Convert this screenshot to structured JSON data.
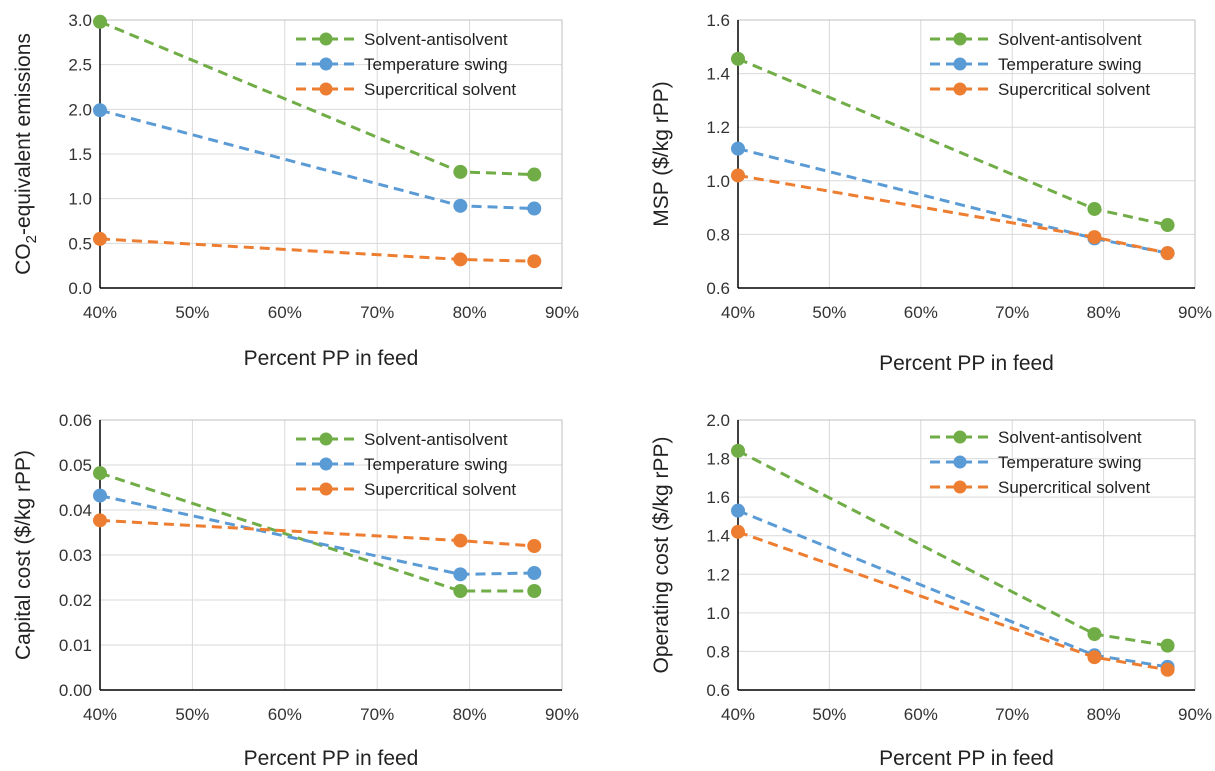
{
  "chart_data": [
    {
      "type": "line",
      "xlabel": "Percent PP in feed",
      "ylabel": "CO2-equivalent emissions",
      "ylabel_parts": {
        "pre": "CO",
        "sub": "2",
        "post": "-equivalent emissions"
      },
      "xlim": [
        0.4,
        0.9
      ],
      "ylim": [
        0,
        3
      ],
      "x_ticks": [
        "40%",
        "50%",
        "60%",
        "70%",
        "80%",
        "90%"
      ],
      "y_ticks": [
        "0.0",
        "0.5",
        "1.0",
        "1.5",
        "2.0",
        "2.5",
        "3.0"
      ],
      "grid": true,
      "legend_position": "top-right",
      "x": [
        0.4,
        0.79,
        0.87
      ],
      "series": [
        {
          "name": "Solvent-antisolvent",
          "color": "#70ad47",
          "values": [
            2.98,
            1.3,
            1.27
          ]
        },
        {
          "name": "Temperature swing",
          "color": "#5b9bd5",
          "values": [
            1.99,
            0.92,
            0.89
          ]
        },
        {
          "name": "Supercritical solvent",
          "color": "#ed7d31",
          "values": [
            0.55,
            0.32,
            0.3
          ]
        }
      ]
    },
    {
      "type": "line",
      "xlabel": "Percent PP in feed",
      "ylabel": "MSP ($/kg rPP)",
      "xlim": [
        0.4,
        0.9
      ],
      "ylim": [
        0.6,
        1.6
      ],
      "x_ticks": [
        "40%",
        "50%",
        "60%",
        "70%",
        "80%",
        "90%"
      ],
      "y_ticks": [
        "0.6",
        "0.8",
        "1.0",
        "1.2",
        "1.4",
        "1.6"
      ],
      "grid": true,
      "legend_position": "top-right",
      "x": [
        0.4,
        0.79,
        0.87
      ],
      "series": [
        {
          "name": "Solvent-antisolvent",
          "color": "#70ad47",
          "values": [
            1.455,
            0.895,
            0.835
          ]
        },
        {
          "name": "Temperature swing",
          "color": "#5b9bd5",
          "values": [
            1.12,
            0.785,
            0.73
          ]
        },
        {
          "name": "Supercritical solvent",
          "color": "#ed7d31",
          "values": [
            1.02,
            0.79,
            0.73
          ]
        }
      ]
    },
    {
      "type": "line",
      "xlabel": "Percent PP in feed",
      "ylabel": "Capital cost ($/kg rPP)",
      "xlim": [
        0.4,
        0.9
      ],
      "ylim": [
        0,
        0.06
      ],
      "x_ticks": [
        "40%",
        "50%",
        "60%",
        "70%",
        "80%",
        "90%"
      ],
      "y_ticks": [
        "0.00",
        "0.01",
        "0.02",
        "0.03",
        "0.04",
        "0.05",
        "0.06"
      ],
      "grid": true,
      "legend_position": "top-right",
      "x": [
        0.4,
        0.79,
        0.87
      ],
      "series": [
        {
          "name": "Solvent-antisolvent",
          "color": "#70ad47",
          "values": [
            0.0482,
            0.022,
            0.022
          ]
        },
        {
          "name": "Temperature swing",
          "color": "#5b9bd5",
          "values": [
            0.0432,
            0.0257,
            0.026
          ]
        },
        {
          "name": "Supercritical solvent",
          "color": "#ed7d31",
          "values": [
            0.0377,
            0.0332,
            0.032
          ]
        }
      ]
    },
    {
      "type": "line",
      "xlabel": "Percent PP in feed",
      "ylabel": "Operating cost ($/kg rPP)",
      "xlim": [
        0.4,
        0.9
      ],
      "ylim": [
        0.6,
        2.0
      ],
      "x_ticks": [
        "40%",
        "50%",
        "60%",
        "70%",
        "80%",
        "90%"
      ],
      "y_ticks": [
        "0.6",
        "0.8",
        "1.0",
        "1.2",
        "1.4",
        "1.6",
        "1.8",
        "2.0"
      ],
      "grid": true,
      "legend_position": "top-right",
      "x": [
        0.4,
        0.79,
        0.87
      ],
      "series": [
        {
          "name": "Solvent-antisolvent",
          "color": "#70ad47",
          "values": [
            1.84,
            0.89,
            0.83
          ]
        },
        {
          "name": "Temperature swing",
          "color": "#5b9bd5",
          "values": [
            1.53,
            0.78,
            0.72
          ]
        },
        {
          "name": "Supercritical solvent",
          "color": "#ed7d31",
          "values": [
            1.42,
            0.77,
            0.705
          ]
        }
      ]
    }
  ]
}
